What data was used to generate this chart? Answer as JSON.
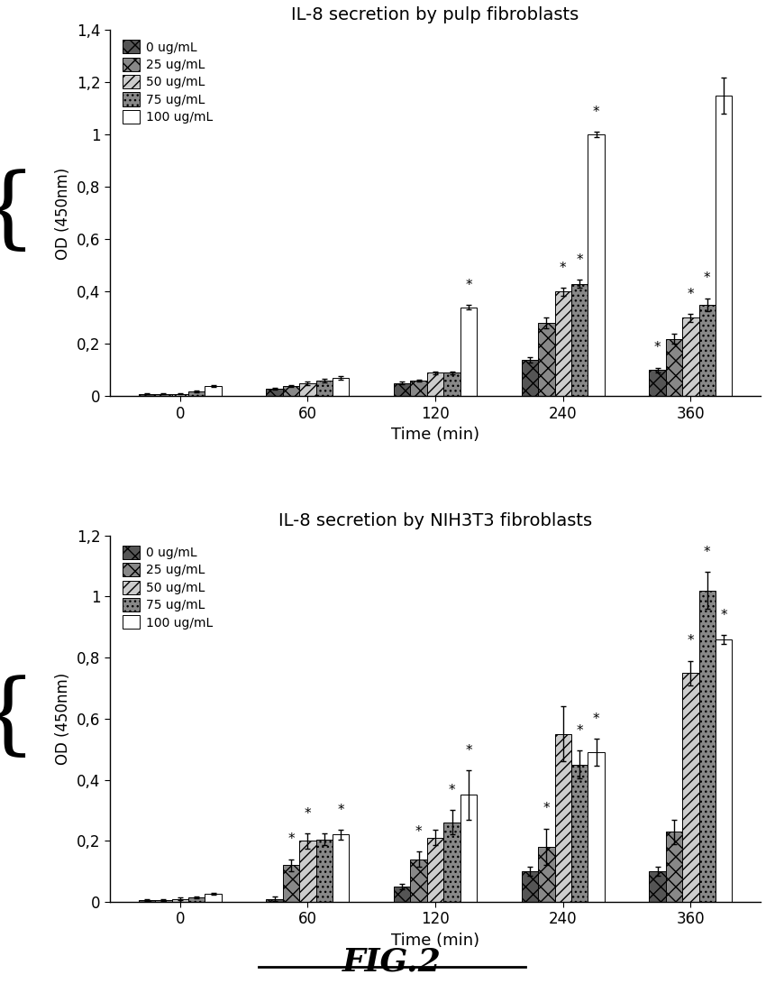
{
  "chart1": {
    "title": "IL-8 secretion by pulp fibroblasts",
    "times": [
      0,
      60,
      120,
      240,
      360
    ],
    "series": {
      "0 ug/mL": [
        0.01,
        0.03,
        0.05,
        0.14,
        0.1
      ],
      "25 ug/mL": [
        0.01,
        0.04,
        0.06,
        0.28,
        0.22
      ],
      "50 ug/mL": [
        0.01,
        0.05,
        0.09,
        0.4,
        0.3
      ],
      "75 ug/mL": [
        0.02,
        0.06,
        0.09,
        0.43,
        0.35
      ],
      "100 ug/mL": [
        0.04,
        0.07,
        0.34,
        1.0,
        1.15
      ]
    },
    "errors": {
      "0 ug/mL": [
        0.003,
        0.004,
        0.005,
        0.01,
        0.01
      ],
      "25 ug/mL": [
        0.003,
        0.004,
        0.005,
        0.02,
        0.02
      ],
      "50 ug/mL": [
        0.003,
        0.006,
        0.006,
        0.015,
        0.015
      ],
      "75 ug/mL": [
        0.003,
        0.006,
        0.006,
        0.015,
        0.025
      ],
      "100 ug/mL": [
        0.003,
        0.008,
        0.008,
        0.01,
        0.07
      ]
    },
    "ylim": [
      0,
      1.4
    ],
    "ytick_vals": [
      0,
      0.2,
      0.4,
      0.6,
      0.8,
      1.0,
      1.2,
      1.4
    ],
    "ytick_labels": [
      "0",
      "0,2",
      "0,4",
      "0,6",
      "0,8",
      "1",
      "1,2",
      "1,4"
    ],
    "ylabel": "OD (450nm)",
    "xlabel": "Time (min)",
    "star_positions": [
      {
        "time_idx": 2,
        "series_idx": 4,
        "label": "100 ug/mL"
      },
      {
        "time_idx": 3,
        "series_idx": 2,
        "label": "50 ug/mL"
      },
      {
        "time_idx": 3,
        "series_idx": 3,
        "label": "75 ug/mL"
      },
      {
        "time_idx": 3,
        "series_idx": 4,
        "label": "100 ug/mL"
      },
      {
        "time_idx": 4,
        "series_idx": 0,
        "label": "0 ug/mL"
      },
      {
        "time_idx": 4,
        "series_idx": 2,
        "label": "50 ug/mL"
      },
      {
        "time_idx": 4,
        "series_idx": 3,
        "label": "75 ug/mL"
      }
    ]
  },
  "chart2": {
    "title": "IL-8 secretion by NIH3T3 fibroblasts",
    "times": [
      0,
      60,
      120,
      240,
      360
    ],
    "series": {
      "0 ug/mL": [
        0.005,
        0.01,
        0.05,
        0.1,
        0.1
      ],
      "25 ug/mL": [
        0.005,
        0.12,
        0.14,
        0.18,
        0.23
      ],
      "50 ug/mL": [
        0.01,
        0.2,
        0.21,
        0.55,
        0.75
      ],
      "75 ug/mL": [
        0.015,
        0.205,
        0.26,
        0.45,
        1.02
      ],
      "100 ug/mL": [
        0.025,
        0.22,
        0.35,
        0.49,
        0.86
      ]
    },
    "errors": {
      "0 ug/mL": [
        0.003,
        0.008,
        0.008,
        0.015,
        0.015
      ],
      "25 ug/mL": [
        0.003,
        0.02,
        0.025,
        0.06,
        0.04
      ],
      "50 ug/mL": [
        0.003,
        0.025,
        0.025,
        0.09,
        0.04
      ],
      "75 ug/mL": [
        0.003,
        0.02,
        0.04,
        0.045,
        0.06
      ],
      "100 ug/mL": [
        0.003,
        0.015,
        0.08,
        0.045,
        0.015
      ]
    },
    "ylim": [
      0,
      1.2
    ],
    "ytick_vals": [
      0,
      0.2,
      0.4,
      0.6,
      0.8,
      1.0,
      1.2
    ],
    "ytick_labels": [
      "0",
      "0,2",
      "0,4",
      "0,6",
      "0,8",
      "1",
      "1,2"
    ],
    "ylabel": "OD (450nm)",
    "xlabel": "Time (min)",
    "star_positions": [
      {
        "time_idx": 1,
        "series_idx": 1,
        "label": "25 ug/mL"
      },
      {
        "time_idx": 1,
        "series_idx": 2,
        "label": "50 ug/mL"
      },
      {
        "time_idx": 1,
        "series_idx": 4,
        "label": "100 ug/mL"
      },
      {
        "time_idx": 2,
        "series_idx": 1,
        "label": "25 ug/mL"
      },
      {
        "time_idx": 2,
        "series_idx": 3,
        "label": "75 ug/mL"
      },
      {
        "time_idx": 2,
        "series_idx": 4,
        "label": "100 ug/mL"
      },
      {
        "time_idx": 3,
        "series_idx": 1,
        "label": "25 ug/mL"
      },
      {
        "time_idx": 3,
        "series_idx": 3,
        "label": "75 ug/mL"
      },
      {
        "time_idx": 3,
        "series_idx": 4,
        "label": "100 ug/mL"
      },
      {
        "time_idx": 4,
        "series_idx": 2,
        "label": "50 ug/mL"
      },
      {
        "time_idx": 4,
        "series_idx": 3,
        "label": "75 ug/mL"
      },
      {
        "time_idx": 4,
        "series_idx": 4,
        "label": "100 ug/mL"
      }
    ]
  },
  "legend_labels": [
    "0 ug/mL",
    "25 ug/mL",
    "50 ug/mL",
    "75 ug/mL",
    "100 ug/mL"
  ],
  "bar_styles": {
    "0 ug/mL": {
      "color": "#555555",
      "hatch": "xx",
      "edgecolor": "#000000"
    },
    "25 ug/mL": {
      "color": "#888888",
      "hatch": "xx",
      "edgecolor": "#000000"
    },
    "50 ug/mL": {
      "color": "#cccccc",
      "hatch": "///",
      "edgecolor": "#000000"
    },
    "75 ug/mL": {
      "color": "#888888",
      "hatch": "...",
      "edgecolor": "#000000"
    },
    "100 ug/mL": {
      "color": "#ffffff",
      "hatch": "",
      "edgecolor": "#000000"
    }
  },
  "fig_label": "FIG.2",
  "bar_width": 0.13
}
